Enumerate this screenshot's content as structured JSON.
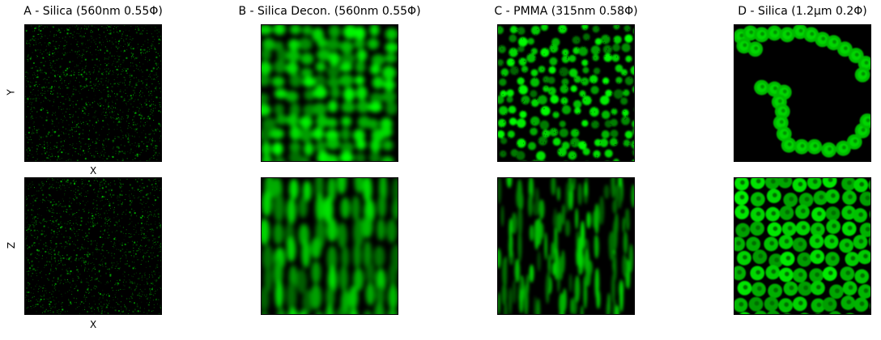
{
  "panels": [
    {
      "title": "A - Silica (560nm 0.55Φ)"
    },
    {
      "title": "B - Silica Decon. (560nm 0.55Φ)"
    },
    {
      "title": "C - PMMA (315nm 0.58Φ)"
    },
    {
      "title": "D - Silica (1.2µm 0.2Φ)"
    }
  ],
  "axes": {
    "top_ylabel": "Y",
    "bottom_ylabel": "Z",
    "top_xlabel": "X",
    "bottom_xlabel": "X"
  },
  "colors": {
    "background": "#000000",
    "fluorescence": "#00ff00"
  }
}
